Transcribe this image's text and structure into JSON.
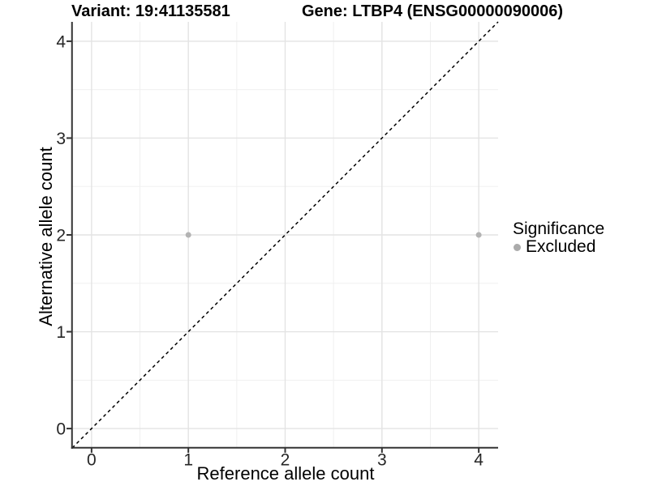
{
  "titles": {
    "variant": "Variant: 19:41135581",
    "gene": "Gene: LTBP4 (ENSG00000090006)"
  },
  "chart_data": {
    "type": "scatter",
    "xlabel": "Reference allele count",
    "ylabel": "Alternative allele count",
    "xlim": [
      -0.2,
      4.2
    ],
    "ylim": [
      -0.2,
      4.2
    ],
    "xticks": [
      0,
      1,
      2,
      3,
      4
    ],
    "yticks": [
      0,
      1,
      2,
      3,
      4
    ],
    "minor_gridline_step": 0.5,
    "grid": true,
    "points": [
      {
        "x": 1,
        "y": 2,
        "significance": "Excluded"
      },
      {
        "x": 4,
        "y": 2,
        "significance": "Excluded"
      }
    ],
    "reference_line": {
      "type": "identity",
      "style": "dashed",
      "from": [
        -0.2,
        -0.2
      ],
      "to": [
        4.2,
        4.2
      ]
    },
    "legend": {
      "title": "Significance",
      "position": "right",
      "items": [
        {
          "label": "Excluded",
          "marker": "circle",
          "color": "#ababab"
        }
      ]
    },
    "colors": {
      "point": "#b3b3b3",
      "axis_line": "#333333",
      "tick_label": "#262626",
      "grid_major": "#e3e3e3",
      "grid_minor": "#f0f0f0",
      "reference_line": "#000000",
      "background": "#ffffff"
    }
  }
}
